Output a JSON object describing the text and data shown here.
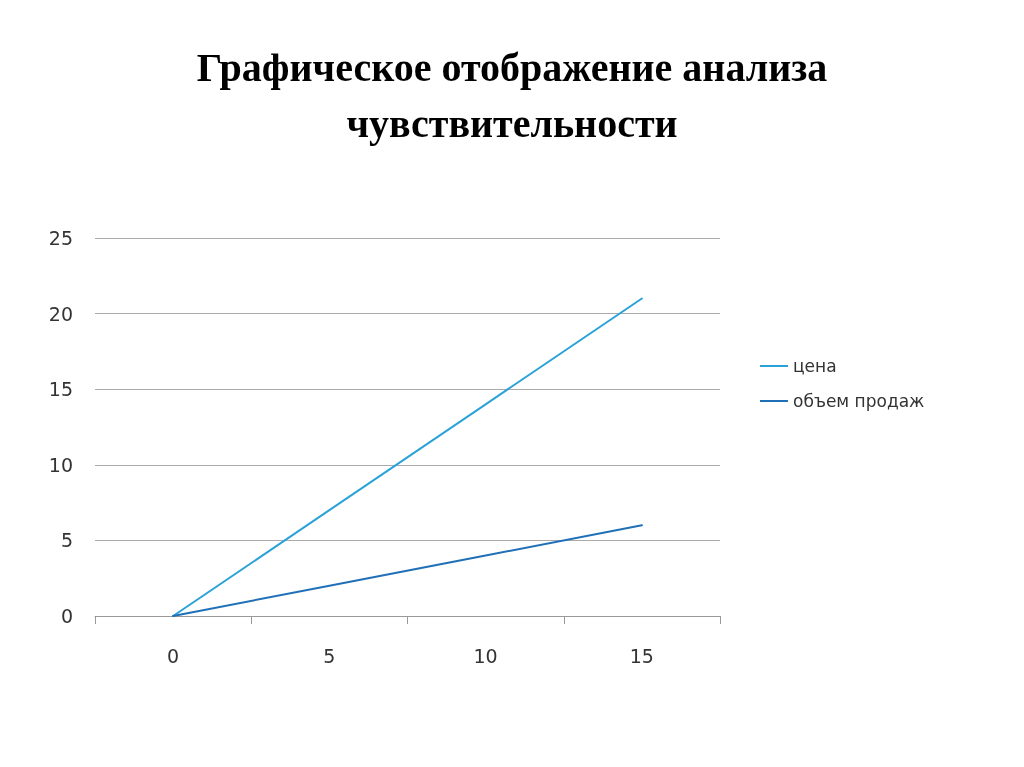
{
  "chart_data": {
    "type": "line",
    "title": "Графическое отображение анализа чувствительности",
    "categories": [
      "0",
      "5",
      "10",
      "15"
    ],
    "series": [
      {
        "name": "цена",
        "color": "#2aa2d8",
        "values": [
          0,
          7,
          14,
          21
        ]
      },
      {
        "name": "объем продаж",
        "color": "#2070b8",
        "values": [
          0,
          2,
          4,
          6
        ]
      }
    ],
    "ylim": [
      0,
      25
    ],
    "yticks": [
      0,
      5,
      10,
      15,
      20,
      25
    ],
    "grid": "y",
    "legend": "right",
    "marker": "none",
    "line_style": "solid"
  }
}
